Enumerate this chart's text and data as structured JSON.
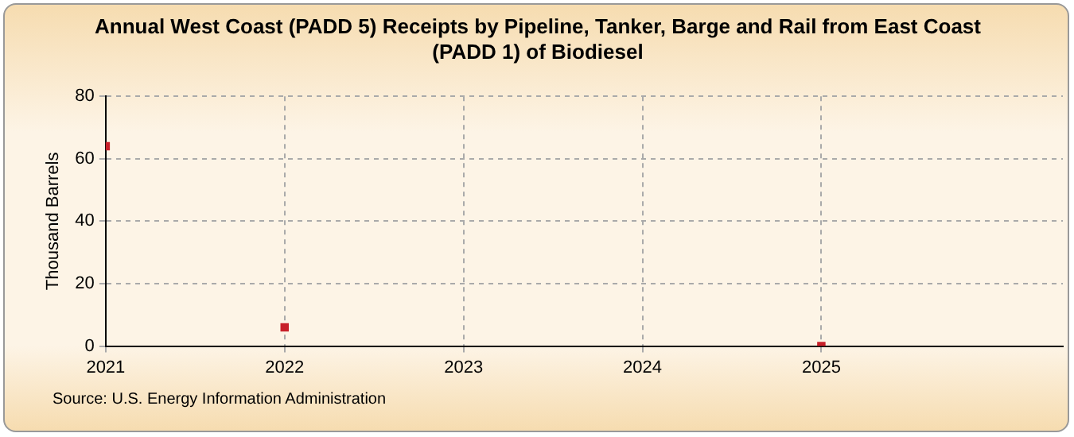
{
  "chart_data": {
    "type": "scatter",
    "title": "Annual West Coast (PADD 5) Receipts by Pipeline, Tanker, Barge and Rail from East Coast (PADD 1) of Biodiesel",
    "ylabel": "Thousand Barrels",
    "x": [
      2021,
      2022,
      2025
    ],
    "series": [
      {
        "color": "#c8202a",
        "values": [
          64,
          6,
          0
        ]
      }
    ],
    "xlim": [
      2021,
      2026.35
    ],
    "xticks": [
      2021,
      2022,
      2023,
      2024,
      2025
    ],
    "ylim": [
      0,
      80
    ],
    "yticks": [
      0,
      20,
      40,
      60,
      80
    ],
    "grid": true,
    "marker": "square",
    "legend": false,
    "annotations": [
      "Source: U.S. Energy Information Administration"
    ]
  }
}
